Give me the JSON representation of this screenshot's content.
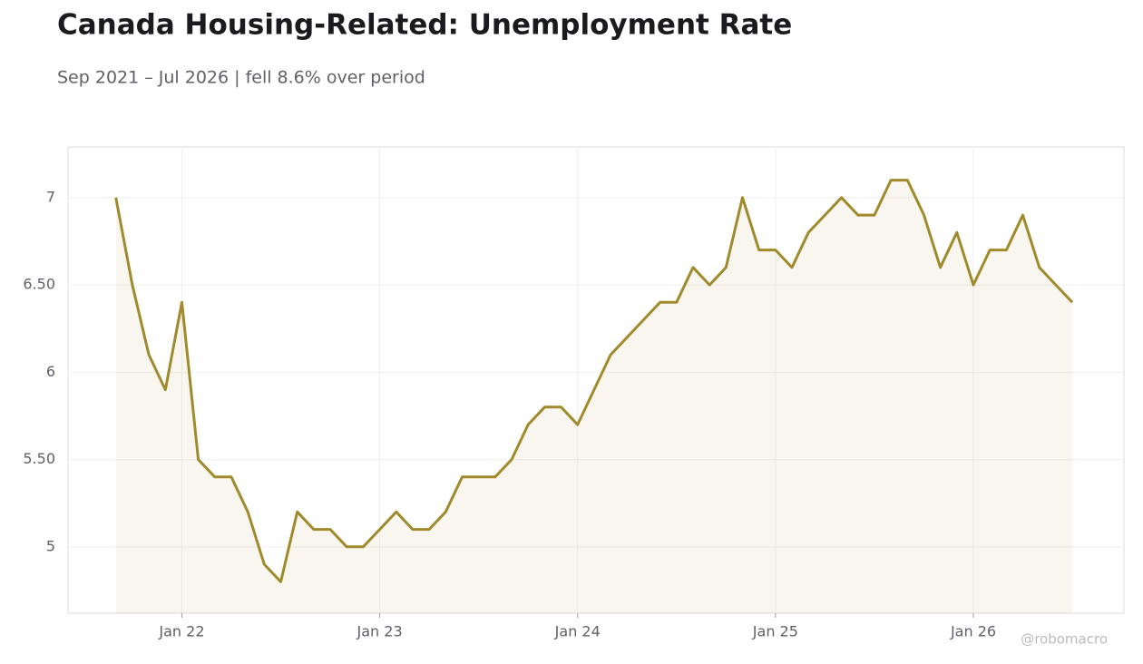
{
  "chart_data": {
    "type": "line",
    "title": "Canada Housing-Related: Unemployment Rate",
    "subtitle": "Sep 2021 – Jul 2026 | fell 8.6% over period",
    "watermark": "@robomacro",
    "x": [
      "2021-09",
      "2021-10",
      "2021-11",
      "2021-12",
      "2022-01",
      "2022-02",
      "2022-03",
      "2022-04",
      "2022-05",
      "2022-06",
      "2022-07",
      "2022-08",
      "2022-09",
      "2022-10",
      "2022-11",
      "2022-12",
      "2023-01",
      "2023-02",
      "2023-03",
      "2023-04",
      "2023-05",
      "2023-06",
      "2023-07",
      "2023-08",
      "2023-09",
      "2023-10",
      "2023-11",
      "2023-12",
      "2024-01",
      "2024-02",
      "2024-03",
      "2024-04",
      "2024-05",
      "2024-06",
      "2024-07",
      "2024-08",
      "2024-09",
      "2024-10",
      "2024-11",
      "2024-12",
      "2025-01",
      "2025-02",
      "2025-03",
      "2025-04",
      "2025-05",
      "2025-06",
      "2025-07",
      "2025-08",
      "2025-09",
      "2025-10",
      "2025-11",
      "2025-12",
      "2026-01",
      "2026-02",
      "2026-03",
      "2026-04",
      "2026-05",
      "2026-06",
      "2026-07"
    ],
    "series": [
      {
        "name": "Unemployment Rate",
        "color": "#a08a2c",
        "values": [
          7.0,
          6.5,
          6.1,
          5.9,
          6.4,
          5.5,
          5.4,
          5.4,
          5.2,
          4.9,
          4.8,
          5.2,
          5.1,
          5.1,
          5.0,
          5.0,
          5.1,
          5.2,
          5.1,
          5.1,
          5.2,
          5.4,
          5.4,
          5.4,
          5.5,
          5.7,
          5.8,
          5.8,
          5.7,
          5.9,
          6.1,
          6.2,
          6.3,
          6.4,
          6.4,
          6.6,
          6.5,
          6.6,
          7.0,
          6.7,
          6.7,
          6.6,
          6.8,
          6.9,
          7.0,
          6.9,
          6.9,
          7.1,
          7.1,
          6.9,
          6.6,
          6.8,
          6.5,
          6.7,
          6.7,
          6.9,
          6.6,
          6.5,
          6.4
        ]
      }
    ],
    "xlim": [
      "2021-06-04",
      "2026-10-05"
    ],
    "xticks": [
      {
        "value": "2022-01",
        "label": "Jan 22"
      },
      {
        "value": "2023-01",
        "label": "Jan 23"
      },
      {
        "value": "2024-01",
        "label": "Jan 24"
      },
      {
        "value": "2025-01",
        "label": "Jan 25"
      },
      {
        "value": "2026-01",
        "label": "Jan 26"
      }
    ],
    "ylim": [
      4.62,
      7.29
    ],
    "yticks": [
      5,
      {
        "value": 5.5,
        "label": "5.50"
      },
      6,
      {
        "value": 6.5,
        "label": "6.50"
      },
      7
    ],
    "grid": true
  }
}
